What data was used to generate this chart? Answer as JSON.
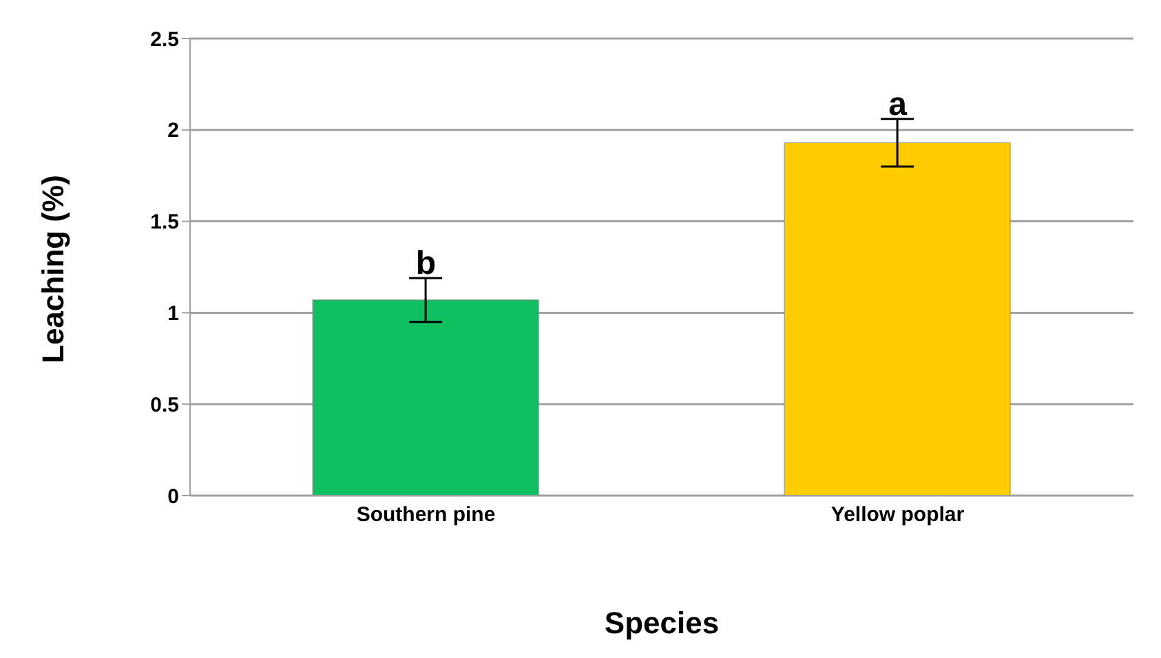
{
  "chart_data": {
    "type": "bar",
    "xlabel": "Species",
    "ylabel": "Leaching (%)",
    "categories": [
      "Southern pine",
      "Yellow poplar"
    ],
    "values": [
      1.07,
      1.93
    ],
    "colors": [
      "#10c060",
      "#ffcc00"
    ],
    "errors": [
      0.12,
      0.13
    ],
    "ylim": [
      0,
      2.5
    ],
    "yticks": [
      0,
      0.5,
      1,
      1.5,
      2,
      2.5
    ],
    "grid": "y",
    "legend": false,
    "annotations": [
      {
        "text": "b",
        "x": "Southern pine",
        "y": 1.19
      },
      {
        "text": "a",
        "x": "Yellow poplar",
        "y": 2.06
      }
    ]
  }
}
